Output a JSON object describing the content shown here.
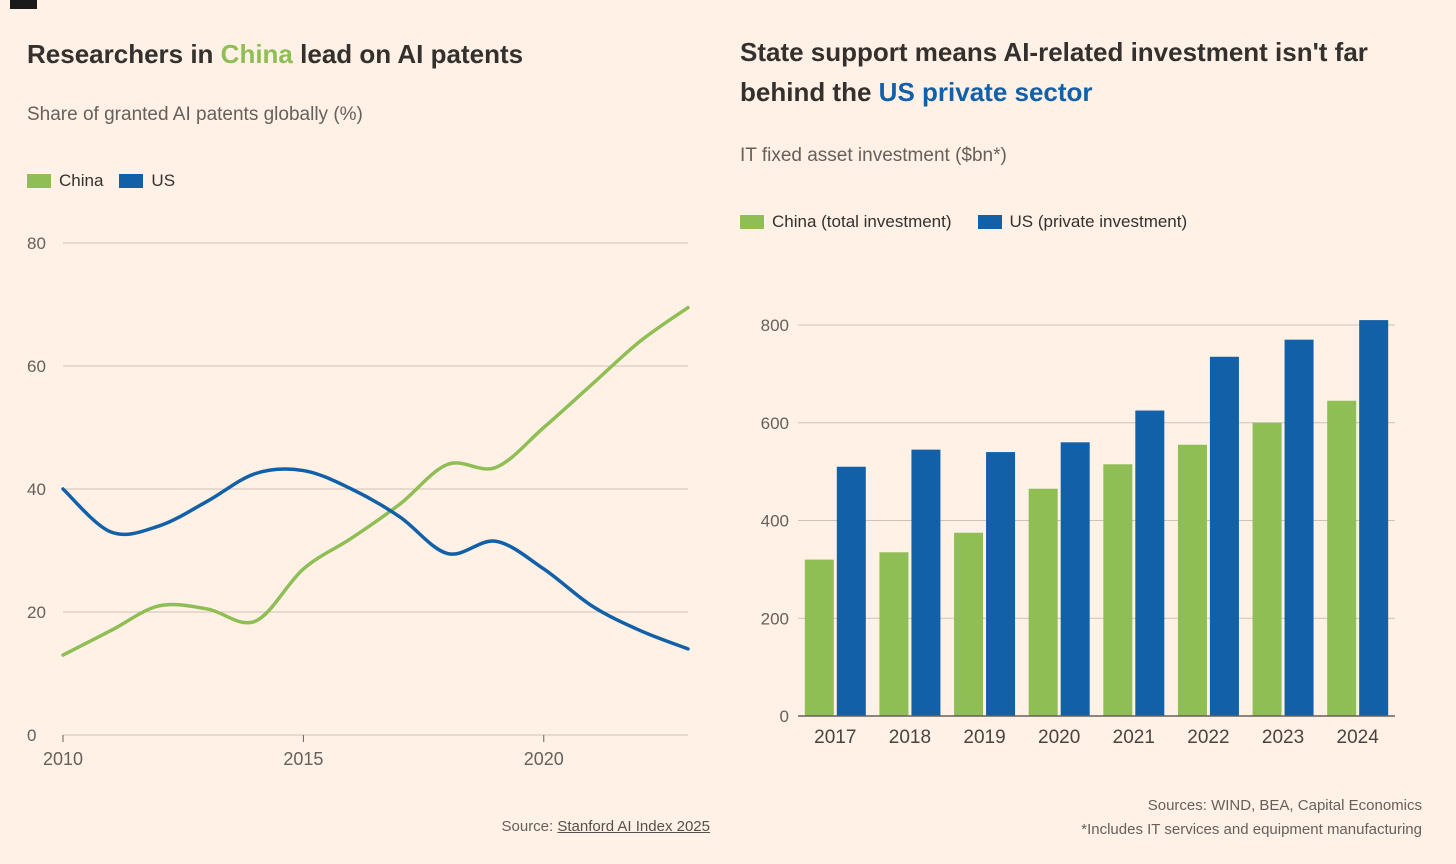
{
  "theme": {
    "background": "#FFF1E5",
    "text": "#33302E",
    "muted": "#66605C",
    "grid": "#CCC1B5",
    "axis": "#66605C",
    "green": "#8FBE55",
    "blue": "#1160A8"
  },
  "left_chart": {
    "title_pre": "Researchers in ",
    "title_highlight": "China",
    "title_post": " lead on AI patents",
    "subtitle": "Share of granted AI patents globally (%)",
    "source_prefix": "Source: ",
    "source_link": "Stanford AI Index 2025"
  },
  "right_chart": {
    "title_line1": "State support means AI-related investment isn't far",
    "title_line2_pre": "behind the ",
    "title_line2_highlight": "US private sector",
    "subtitle": "IT fixed asset investment ($bn*)",
    "source_line1": "Sources: WIND, BEA, Capital Economics",
    "source_line2": "*Includes IT services and equipment manufacturing"
  },
  "chart_data": [
    {
      "type": "line",
      "title": "Researchers in China lead on AI patents",
      "subtitle": "Share of granted AI patents globally (%)",
      "x": [
        2010,
        2011,
        2012,
        2013,
        2014,
        2015,
        2016,
        2017,
        2018,
        2019,
        2020,
        2021,
        2022,
        2023
      ],
      "series": [
        {
          "name": "China",
          "color": "#8FBE55",
          "values": [
            13,
            17,
            21,
            20.5,
            18.5,
            27,
            32,
            37.5,
            44,
            43.5,
            50,
            57,
            64,
            69.5
          ]
        },
        {
          "name": "US",
          "color": "#1160A8",
          "values": [
            40,
            33,
            34,
            38,
            42.5,
            43,
            40,
            35.5,
            29.5,
            31.5,
            27,
            21,
            17,
            14
          ]
        }
      ],
      "ylim": [
        0,
        80
      ],
      "yticks": [
        0,
        20,
        40,
        60,
        80
      ],
      "xticks": [
        2010,
        2015,
        2020
      ],
      "grid": true,
      "legend_position": "top"
    },
    {
      "type": "bar",
      "title": "State support means AI-related investment isn't far behind the US private sector",
      "subtitle": "IT fixed asset investment ($bn*)",
      "categories": [
        2017,
        2018,
        2019,
        2020,
        2021,
        2022,
        2023,
        2024
      ],
      "series": [
        {
          "name": "China (total investment)",
          "color": "#8FBE55",
          "values": [
            320,
            335,
            375,
            465,
            515,
            555,
            600,
            645
          ]
        },
        {
          "name": "US (private investment)",
          "color": "#1160A8",
          "values": [
            510,
            545,
            540,
            560,
            625,
            735,
            770,
            810
          ]
        }
      ],
      "ylim": [
        0,
        800
      ],
      "yticks": [
        0,
        200,
        400,
        600,
        800
      ],
      "grid": true,
      "legend_position": "top"
    }
  ]
}
